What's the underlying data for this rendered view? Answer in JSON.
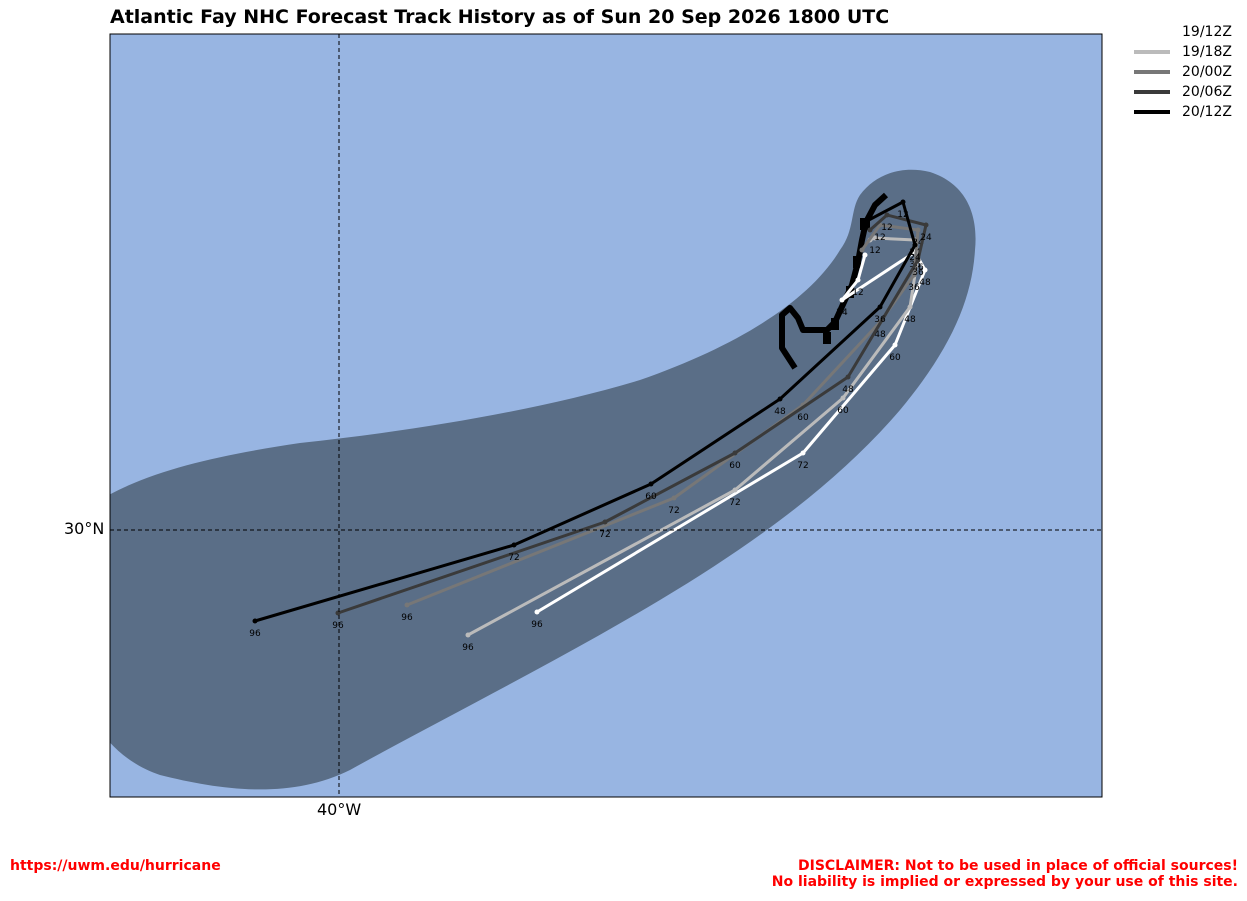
{
  "title": "Atlantic Fay NHC Forecast Track History as of Sun 20 Sep 2026 1800 UTC",
  "colors": {
    "ocean": "#98b5e2",
    "cone": "#5a6e87"
  },
  "axis_labels": {
    "lat": "30°N",
    "lon": "40°W"
  },
  "legend": [
    {
      "label": "19/12Z",
      "color": "#ffffff"
    },
    {
      "label": "19/18Z",
      "color": "#bbbbbb"
    },
    {
      "label": "20/00Z",
      "color": "#777777"
    },
    {
      "label": "20/06Z",
      "color": "#3a3a3a"
    },
    {
      "label": "20/12Z",
      "color": "#000000"
    }
  ],
  "footer": {
    "url": "https://uwm.edu/hurricane",
    "disclaimer_line1": "DISCLAIMER: Not to be used in place of official sources!",
    "disclaimer_line2": "No liability is implied or expressed by your use of this site."
  },
  "tracks": [
    {
      "name": "19/12Z",
      "color": "#ffffff",
      "points": [
        [
          "",
          865,
          255
        ],
        [
          "12",
          858,
          280
        ],
        [
          "24",
          842,
          300
        ],
        [
          "36",
          915,
          252
        ],
        [
          "48",
          925,
          270
        ],
        [
          "60",
          895,
          345
        ],
        [
          "72",
          803,
          453
        ],
        [
          "96",
          537,
          612
        ]
      ]
    },
    {
      "name": "19/18Z",
      "color": "#bbbbbb",
      "points": [
        [
          "",
          870,
          240
        ],
        [
          "12",
          875,
          238
        ],
        [
          "24",
          915,
          240
        ],
        [
          "36",
          918,
          255
        ],
        [
          "48",
          910,
          307
        ],
        [
          "60",
          843,
          398
        ],
        [
          "72",
          735,
          490
        ],
        [
          "96",
          468,
          635
        ]
      ]
    },
    {
      "name": "20/00Z",
      "color": "#777777",
      "points": [
        [
          "",
          862,
          250
        ],
        [
          "12",
          880,
          225
        ],
        [
          "24",
          918,
          230
        ],
        [
          "36",
          914,
          275
        ],
        [
          "48",
          880,
          322
        ],
        [
          "60",
          803,
          405
        ],
        [
          "72",
          674,
          498
        ],
        [
          "96",
          407,
          605
        ]
      ]
    },
    {
      "name": "20/06Z",
      "color": "#3a3a3a",
      "points": [
        [
          "",
          870,
          230
        ],
        [
          "12",
          887,
          215
        ],
        [
          "24",
          926,
          225
        ],
        [
          "36",
          918,
          260
        ],
        [
          "48",
          848,
          377
        ],
        [
          "60",
          735,
          453
        ],
        [
          "72",
          605,
          522
        ],
        [
          "96",
          338,
          613
        ]
      ]
    },
    {
      "name": "20/12Z",
      "color": "#000000",
      "points": [
        [
          "",
          865,
          222
        ],
        [
          "12",
          903,
          202
        ],
        [
          "24",
          915,
          245
        ],
        [
          "36",
          880,
          307
        ],
        [
          "48",
          780,
          399
        ],
        [
          "60",
          651,
          484
        ],
        [
          "72",
          514,
          545
        ],
        [
          "96",
          255,
          621
        ]
      ]
    }
  ]
}
